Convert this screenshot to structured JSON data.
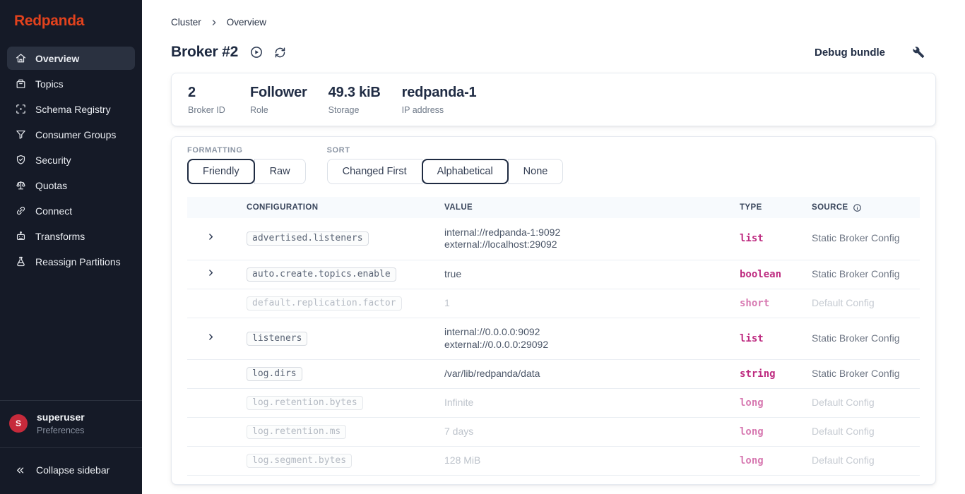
{
  "sidebar": {
    "logo": "Redpanda",
    "items": [
      {
        "label": "Overview",
        "icon": "home",
        "active": true
      },
      {
        "label": "Topics",
        "icon": "box",
        "active": false
      },
      {
        "label": "Schema Registry",
        "icon": "schema",
        "active": false
      },
      {
        "label": "Consumer Groups",
        "icon": "filter",
        "active": false
      },
      {
        "label": "Security",
        "icon": "shield",
        "active": false
      },
      {
        "label": "Quotas",
        "icon": "scale",
        "active": false
      },
      {
        "label": "Connect",
        "icon": "link",
        "active": false
      },
      {
        "label": "Transforms",
        "icon": "robot",
        "active": false
      },
      {
        "label": "Reassign Partitions",
        "icon": "flask",
        "active": false
      }
    ],
    "user": {
      "initial": "S",
      "name": "superuser",
      "subtitle": "Preferences"
    },
    "collapse_label": "Collapse sidebar"
  },
  "breadcrumb": {
    "items": [
      "Cluster",
      "Overview"
    ]
  },
  "header": {
    "title": "Broker #2",
    "debug_bundle_label": "Debug bundle"
  },
  "stats": [
    {
      "value": "2",
      "label": "Broker ID"
    },
    {
      "value": "Follower",
      "label": "Role"
    },
    {
      "value": "49.3 kiB",
      "label": "Storage"
    },
    {
      "value": "redpanda-1",
      "label": "IP address"
    }
  ],
  "controls": {
    "formatting": {
      "label": "FORMATTING",
      "options": [
        {
          "label": "Friendly",
          "selected": true
        },
        {
          "label": "Raw",
          "selected": false
        }
      ]
    },
    "sort": {
      "label": "SORT",
      "options": [
        {
          "label": "Changed First",
          "selected": false
        },
        {
          "label": "Alphabetical",
          "selected": true
        },
        {
          "label": "None",
          "selected": false
        }
      ]
    }
  },
  "table": {
    "columns": [
      "CONFIGURATION",
      "VALUE",
      "TYPE",
      "SOURCE"
    ],
    "rows": [
      {
        "expandable": true,
        "config": "advertised.listeners",
        "values": [
          "internal://redpanda-1:9092",
          "external://localhost:29092"
        ],
        "type": "list",
        "source": "Static Broker Config",
        "is_default": false
      },
      {
        "expandable": true,
        "config": "auto.create.topics.enable",
        "values": [
          "true"
        ],
        "type": "boolean",
        "source": "Static Broker Config",
        "is_default": false
      },
      {
        "expandable": false,
        "config": "default.replication.factor",
        "values": [
          "1"
        ],
        "type": "short",
        "source": "Default Config",
        "is_default": true
      },
      {
        "expandable": true,
        "config": "listeners",
        "values": [
          "internal://0.0.0.0:9092",
          "external://0.0.0.0:29092"
        ],
        "type": "list",
        "source": "Static Broker Config",
        "is_default": false
      },
      {
        "expandable": false,
        "config": "log.dirs",
        "values": [
          "/var/lib/redpanda/data"
        ],
        "type": "string",
        "source": "Static Broker Config",
        "is_default": false
      },
      {
        "expandable": false,
        "config": "log.retention.bytes",
        "values": [
          "Infinite"
        ],
        "type": "long",
        "source": "Default Config",
        "is_default": true
      },
      {
        "expandable": false,
        "config": "log.retention.ms",
        "values": [
          "7 days"
        ],
        "type": "long",
        "source": "Default Config",
        "is_default": true
      },
      {
        "expandable": false,
        "config": "log.segment.bytes",
        "values": [
          "128 MiB"
        ],
        "type": "long",
        "source": "Default Config",
        "is_default": true
      }
    ]
  },
  "colors": {
    "brand": "#E2421D",
    "sidebar_bg": "#151A27",
    "sidebar_active_bg": "#2A3140",
    "type_accent": "#BE2B80",
    "avatar_bg": "#C62A3B",
    "selected_button_border": "#1F2B42",
    "table_header_bg": "#F7FAFD"
  }
}
